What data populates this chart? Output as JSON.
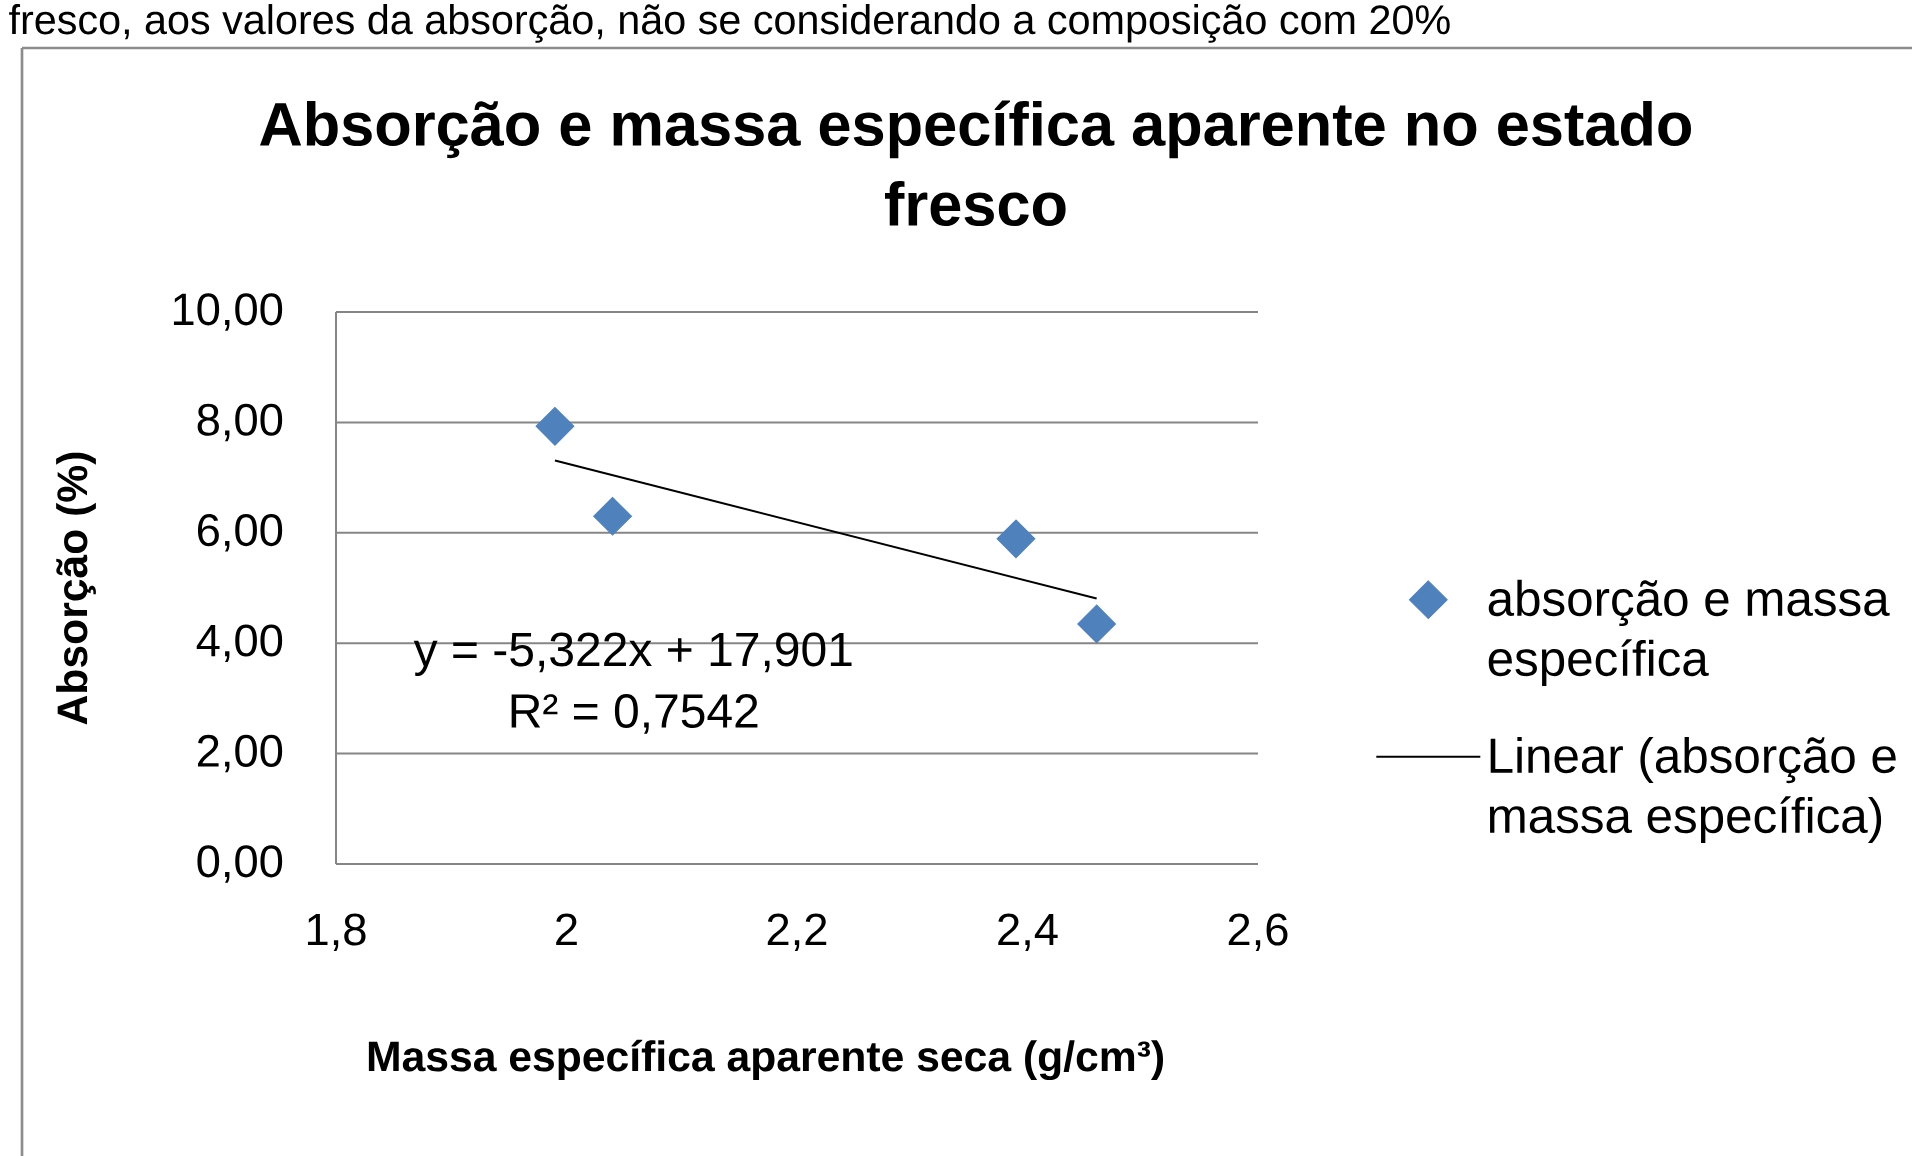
{
  "chart_data": {
    "type": "scatter",
    "title": "Absorção e massa específica aparente no estado fresco",
    "xlabel": "Massa específica aparente seca (g/cm³)",
    "ylabel": "Absorção (%)",
    "annotations": [
      "fresco, aos valores da absorção, não se considerando a composição com 20%",
      "y = -5,322x + 17,901",
      "R² = 0,7542"
    ],
    "xlim": [
      1.8,
      2.6
    ],
    "xticks": [
      {
        "value": 1.8,
        "label": "1,8"
      },
      2,
      {
        "value": 2.2,
        "label": "2,2"
      },
      {
        "value": 2.4,
        "label": "2,4"
      },
      {
        "value": 2.6,
        "label": "2,6"
      }
    ],
    "ylim": [
      0,
      10
    ],
    "yticks": [
      {
        "value": 0,
        "label": "0,00"
      },
      {
        "value": 2,
        "label": "2,00"
      },
      {
        "value": 4,
        "label": "4,00"
      },
      {
        "value": 6,
        "label": "6,00"
      },
      {
        "value": 8,
        "label": "8,00"
      },
      {
        "value": 10,
        "label": "10,00"
      }
    ],
    "grid": "y",
    "legend": "right",
    "series": [
      {
        "name": "absorção e massa específica",
        "marker": "diamond",
        "color": "#4f81bd",
        "x": [
          1.99,
          2.04,
          2.39,
          2.46
        ],
        "values": [
          7.93,
          6.3,
          5.89,
          4.35
        ]
      },
      {
        "name": "Linear (absorção e massa específica)",
        "type": "line",
        "marker": "none",
        "line_style": "solid",
        "color": "#000000",
        "x": [
          1.99,
          2.46
        ],
        "values": [
          7.31,
          4.81
        ]
      }
    ]
  }
}
